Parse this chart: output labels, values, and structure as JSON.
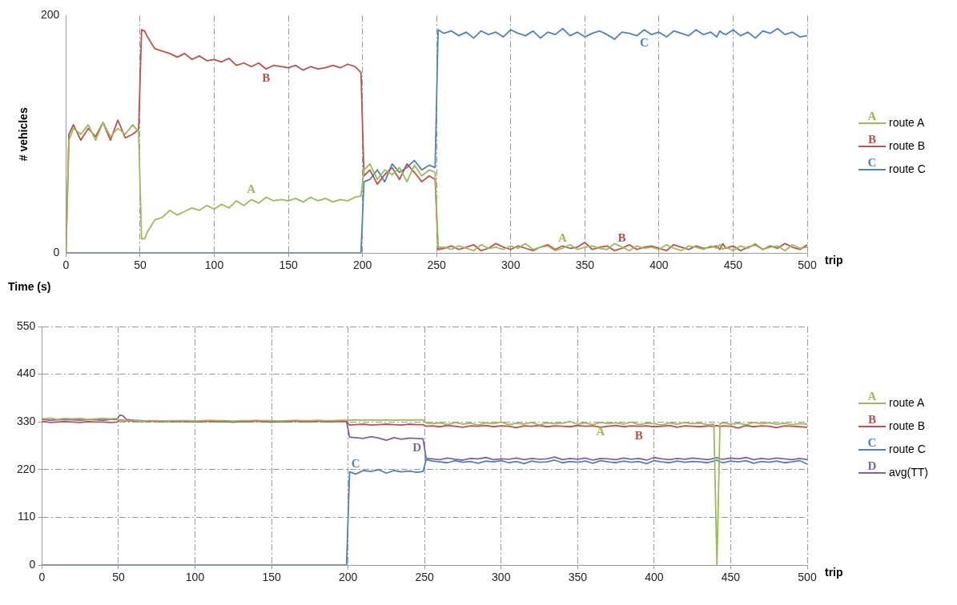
{
  "chart_data": [
    {
      "type": "line",
      "ylabel": "# vehicles",
      "xlabel": "trip",
      "xlim": [
        0,
        500
      ],
      "xticks": [
        0,
        50,
        100,
        150,
        200,
        250,
        300,
        350,
        400,
        450,
        500
      ],
      "ylim": [
        0,
        200
      ],
      "yticks": [
        0,
        200
      ],
      "grid": "x",
      "legend": "right",
      "marker": "none",
      "x": [
        0,
        2,
        5,
        10,
        15,
        20,
        25,
        30,
        35,
        40,
        45,
        49,
        51,
        53,
        55,
        60,
        65,
        70,
        75,
        80,
        85,
        90,
        95,
        100,
        105,
        110,
        115,
        120,
        125,
        130,
        135,
        140,
        145,
        150,
        155,
        160,
        165,
        170,
        175,
        180,
        185,
        190,
        195,
        199,
        201,
        205,
        210,
        215,
        220,
        225,
        230,
        235,
        240,
        245,
        249,
        251,
        255,
        260,
        265,
        270,
        275,
        280,
        285,
        290,
        295,
        300,
        305,
        310,
        315,
        320,
        325,
        330,
        335,
        340,
        345,
        350,
        355,
        360,
        365,
        370,
        375,
        380,
        385,
        390,
        395,
        400,
        405,
        410,
        415,
        420,
        425,
        430,
        435,
        439,
        441,
        443,
        445,
        450,
        455,
        460,
        465,
        470,
        475,
        480,
        485,
        490,
        495,
        500
      ],
      "series": [
        {
          "name": "route A",
          "color": "#9bbb59",
          "values": [
            0,
            95,
            105,
            100,
            108,
            95,
            110,
            98,
            105,
            100,
            108,
            102,
            12,
            12,
            18,
            28,
            30,
            36,
            32,
            35,
            38,
            36,
            40,
            37,
            41,
            38,
            44,
            40,
            45,
            42,
            47,
            44,
            45,
            44,
            46,
            43,
            47,
            44,
            46,
            43,
            45,
            44,
            47,
            48,
            70,
            75,
            62,
            70,
            66,
            72,
            60,
            74,
            65,
            70,
            68,
            5,
            5,
            3,
            6,
            4,
            2,
            7,
            4,
            5,
            3,
            6,
            4,
            8,
            3,
            5,
            6,
            2,
            4,
            7,
            3,
            5,
            6,
            4,
            3,
            8,
            5,
            2,
            6,
            4,
            5,
            3,
            7,
            4,
            2,
            6,
            5,
            3,
            6,
            4,
            7,
            3,
            5,
            2,
            6,
            4,
            8,
            3,
            5,
            6,
            2,
            7,
            4,
            5
          ]
        },
        {
          "name": "route B",
          "color": "#c0504d",
          "values": [
            0,
            100,
            108,
            95,
            105,
            98,
            110,
            95,
            112,
            97,
            100,
            104,
            188,
            187,
            182,
            172,
            170,
            168,
            165,
            168,
            163,
            166,
            162,
            163,
            161,
            164,
            158,
            160,
            157,
            160,
            155,
            158,
            157,
            156,
            158,
            154,
            157,
            155,
            156,
            158,
            156,
            159,
            157,
            152,
            65,
            70,
            58,
            66,
            72,
            62,
            75,
            68,
            60,
            65,
            62,
            3,
            4,
            6,
            3,
            5,
            7,
            2,
            4,
            8,
            5,
            3,
            6,
            4,
            2,
            5,
            7,
            3,
            6,
            4,
            5,
            9,
            3,
            5,
            6,
            2,
            4,
            7,
            3,
            5,
            6,
            4,
            2,
            7,
            5,
            3,
            6,
            4,
            5,
            6,
            3,
            8,
            4,
            6,
            2,
            5,
            7,
            3,
            6,
            4,
            8,
            5,
            3,
            7
          ]
        },
        {
          "name": "route C",
          "color": "#4f81bd",
          "values": [
            0,
            0,
            0,
            0,
            0,
            0,
            0,
            0,
            0,
            0,
            0,
            0,
            0,
            0,
            0,
            0,
            0,
            0,
            0,
            0,
            0,
            0,
            0,
            0,
            0,
            0,
            0,
            0,
            0,
            0,
            0,
            0,
            0,
            0,
            0,
            0,
            0,
            0,
            0,
            0,
            0,
            0,
            0,
            0,
            60,
            62,
            70,
            60,
            75,
            68,
            72,
            78,
            70,
            74,
            72,
            188,
            185,
            187,
            183,
            186,
            181,
            187,
            184,
            186,
            182,
            188,
            185,
            183,
            187,
            181,
            186,
            184,
            189,
            183,
            186,
            182,
            185,
            187,
            184,
            180,
            186,
            185,
            183,
            188,
            184,
            186,
            182,
            187,
            185,
            183,
            188,
            184,
            186,
            182,
            187,
            185,
            184,
            188,
            183,
            186,
            181,
            187,
            185,
            189,
            184,
            186,
            182,
            183
          ]
        }
      ],
      "annotations": [
        {
          "text": "A",
          "x": 125,
          "y": 45
        },
        {
          "text": "B",
          "x": 135,
          "y": 155
        },
        {
          "text": "C",
          "x": 390,
          "y": 185
        },
        {
          "text": "A",
          "x": 335,
          "y": 4
        },
        {
          "text": "B",
          "x": 375,
          "y": 4
        }
      ]
    },
    {
      "type": "line",
      "ylabel": "Time (s)",
      "xlabel": "trip",
      "xlim": [
        0,
        500
      ],
      "xticks": [
        0,
        50,
        100,
        150,
        200,
        250,
        300,
        350,
        400,
        450,
        500
      ],
      "ylim": [
        0,
        550
      ],
      "yticks": [
        0,
        110,
        220,
        330,
        440,
        550
      ],
      "grid": true,
      "legend": "right",
      "marker": "none",
      "x": [
        0,
        2,
        5,
        10,
        15,
        20,
        25,
        30,
        35,
        40,
        45,
        49,
        51,
        53,
        55,
        60,
        65,
        70,
        75,
        80,
        85,
        90,
        95,
        100,
        105,
        110,
        115,
        120,
        125,
        130,
        135,
        140,
        145,
        150,
        155,
        160,
        165,
        170,
        175,
        180,
        185,
        190,
        195,
        199,
        201,
        205,
        210,
        215,
        220,
        225,
        230,
        235,
        240,
        245,
        249,
        251,
        255,
        260,
        265,
        270,
        275,
        280,
        285,
        290,
        295,
        300,
        305,
        310,
        315,
        320,
        325,
        330,
        335,
        340,
        345,
        350,
        355,
        360,
        365,
        370,
        375,
        380,
        385,
        390,
        395,
        400,
        405,
        410,
        415,
        420,
        425,
        430,
        435,
        439,
        441,
        443,
        445,
        450,
        455,
        460,
        465,
        470,
        475,
        480,
        485,
        490,
        495,
        500
      ],
      "series": [
        {
          "name": "route A",
          "color": "#9bbb59",
          "values": [
            338,
            337,
            339,
            336,
            338,
            337,
            338,
            336,
            337,
            338,
            337,
            338,
            333,
            332,
            333,
            333,
            332,
            333,
            333,
            332,
            333,
            333,
            333,
            332,
            333,
            334,
            333,
            333,
            332,
            333,
            333,
            334,
            333,
            333,
            332,
            333,
            334,
            333,
            333,
            334,
            333,
            333,
            334,
            334,
            334,
            335,
            334,
            335,
            334,
            335,
            334,
            335,
            334,
            335,
            335,
            328,
            326,
            328,
            324,
            329,
            325,
            327,
            323,
            328,
            326,
            330,
            324,
            327,
            325,
            329,
            323,
            328,
            326,
            327,
            331,
            325,
            328,
            324,
            329,
            326,
            328,
            325,
            330,
            324,
            327,
            326,
            323,
            328,
            325,
            329,
            326,
            327,
            324,
            325,
            0,
            326,
            328,
            325,
            327,
            324,
            329,
            326,
            328,
            325,
            327,
            324,
            326,
            325
          ]
        },
        {
          "name": "route B",
          "color": "#c0504d",
          "values": [
            330,
            331,
            329,
            330,
            331,
            330,
            329,
            331,
            330,
            330,
            329,
            330,
            334,
            334,
            332,
            332,
            331,
            332,
            331,
            331,
            332,
            331,
            332,
            331,
            331,
            332,
            331,
            331,
            330,
            331,
            331,
            332,
            331,
            330,
            331,
            331,
            332,
            331,
            331,
            332,
            331,
            331,
            332,
            331,
            323,
            324,
            325,
            323,
            324,
            325,
            324,
            323,
            325,
            324,
            324,
            320,
            321,
            319,
            322,
            320,
            318,
            321,
            320,
            322,
            319,
            321,
            320,
            317,
            321,
            320,
            322,
            319,
            321,
            320,
            319,
            322,
            320,
            321,
            318,
            320,
            322,
            319,
            321,
            320,
            321,
            319,
            320,
            322,
            318,
            321,
            320,
            319,
            321,
            320,
            322,
            319,
            321,
            320,
            316,
            322,
            319,
            321,
            320,
            317,
            321,
            320,
            319,
            318
          ]
        },
        {
          "name": "route C",
          "color": "#4f81bd",
          "values": [
            0,
            0,
            0,
            0,
            0,
            0,
            0,
            0,
            0,
            0,
            0,
            0,
            0,
            0,
            0,
            0,
            0,
            0,
            0,
            0,
            0,
            0,
            0,
            0,
            0,
            0,
            0,
            0,
            0,
            0,
            0,
            0,
            0,
            0,
            0,
            0,
            0,
            0,
            0,
            0,
            0,
            0,
            0,
            0,
            215,
            210,
            218,
            216,
            220,
            212,
            218,
            215,
            217,
            214,
            216,
            243,
            240,
            238,
            236,
            241,
            237,
            239,
            235,
            240,
            238,
            241,
            236,
            239,
            234,
            240,
            237,
            238,
            242,
            236,
            239,
            237,
            240,
            235,
            241,
            238,
            236,
            240,
            237,
            239,
            234,
            241,
            238,
            236,
            240,
            237,
            239,
            238,
            236,
            240,
            242,
            238,
            236,
            240,
            238,
            241,
            235,
            239,
            237,
            240,
            236,
            238,
            241,
            233
          ]
        },
        {
          "name": "avg(TT)",
          "color": "#8064a2",
          "values": [
            335,
            336,
            334,
            335,
            336,
            335,
            334,
            336,
            335,
            334,
            336,
            336,
            346,
            344,
            336,
            334,
            333,
            332,
            332,
            332,
            331,
            332,
            331,
            331,
            331,
            332,
            331,
            331,
            330,
            331,
            331,
            332,
            331,
            330,
            331,
            331,
            332,
            331,
            331,
            332,
            331,
            331,
            332,
            331,
            295,
            294,
            292,
            296,
            293,
            288,
            294,
            290,
            293,
            292,
            291,
            246,
            245,
            243,
            247,
            244,
            242,
            246,
            245,
            248,
            243,
            245,
            244,
            247,
            243,
            246,
            244,
            245,
            249,
            243,
            246,
            244,
            247,
            242,
            246,
            245,
            243,
            247,
            244,
            246,
            242,
            248,
            245,
            243,
            246,
            244,
            247,
            245,
            243,
            246,
            248,
            245,
            244,
            247,
            245,
            248,
            243,
            246,
            244,
            247,
            245,
            243,
            246,
            243
          ]
        }
      ],
      "annotations": [
        {
          "text": "A",
          "x": 365,
          "y": 329
        },
        {
          "text": "B",
          "x": 390,
          "y": 320
        },
        {
          "text": "C",
          "x": 205,
          "y": 210
        },
        {
          "text": "D",
          "x": 245,
          "y": 292
        }
      ]
    }
  ]
}
